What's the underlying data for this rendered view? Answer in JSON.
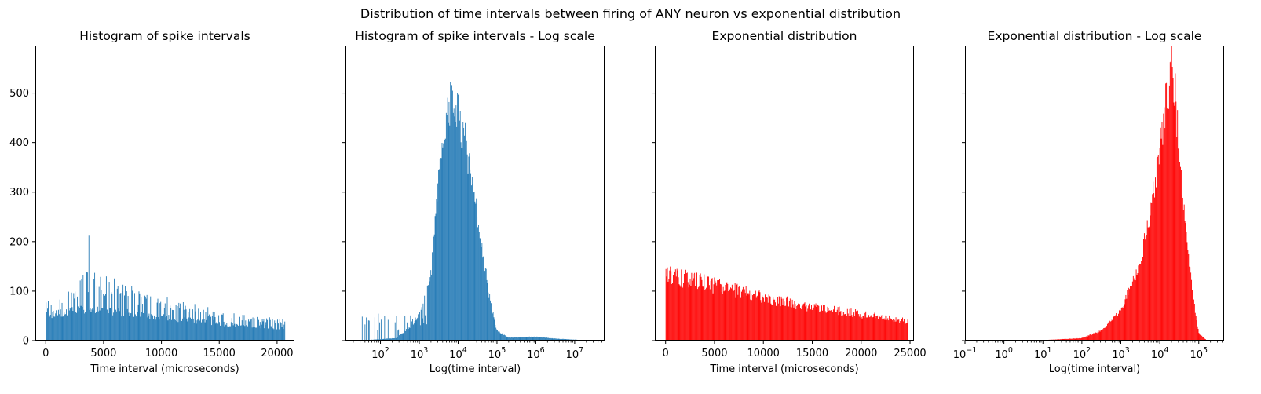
{
  "suptitle": "Distribution of time intervals between firing of ANY neuron vs exponential distribution",
  "colors": {
    "blue": "#1f77b4",
    "red": "#ff0000"
  },
  "shared_y": {
    "ticks": [
      0,
      100,
      200,
      300,
      400,
      500
    ],
    "ylim": [
      0,
      596
    ],
    "grid": false
  },
  "chart_data": [
    {
      "type": "bar",
      "title": "Histogram of spike intervals",
      "xlabel": "Time interval (microseconds)",
      "ylabel": "",
      "x_scale": "linear",
      "xlim": [
        -900,
        21500
      ],
      "xticks": [
        0,
        5000,
        10000,
        15000,
        20000
      ],
      "xtick_labels": [
        "0",
        "5000",
        "10000",
        "15000",
        "20000"
      ],
      "color": "#1f77b4",
      "shape": "spiky",
      "bins": {
        "start": 0,
        "end": 20700,
        "count": 330,
        "bin_width": 62.7
      },
      "envelope": [
        [
          0,
          75
        ],
        [
          1000,
          80
        ],
        [
          2500,
          95
        ],
        [
          3800,
          135
        ],
        [
          5000,
          120
        ],
        [
          7500,
          95
        ],
        [
          10000,
          80
        ],
        [
          15000,
          55
        ],
        [
          20700,
          40
        ]
      ],
      "base_envelope": [
        [
          0,
          50
        ],
        [
          2000,
          58
        ],
        [
          4000,
          65
        ],
        [
          6000,
          58
        ],
        [
          10000,
          48
        ],
        [
          15000,
          35
        ],
        [
          20700,
          25
        ]
      ],
      "spike_peak": 212,
      "ylim": [
        0,
        596
      ]
    },
    {
      "type": "bar",
      "title": "Histogram of spike intervals - Log scale",
      "xlabel": "Log(time interval)",
      "ylabel": "",
      "x_scale": "log",
      "xlim_log10": [
        1.1,
        7.77
      ],
      "xticks": [
        100,
        1000,
        10000,
        100000,
        1000000,
        10000000
      ],
      "xtick_labels": [
        [
          "10",
          "2"
        ],
        [
          "10",
          "3"
        ],
        [
          "10",
          "4"
        ],
        [
          "10",
          "5"
        ],
        [
          "10",
          "6"
        ],
        [
          "10",
          "7"
        ]
      ],
      "color": "#1f77b4",
      "shape": "smooth",
      "bins": {
        "start_log10": 1.45,
        "end_log10": 7.4,
        "count": 330
      },
      "envelope_log10": [
        [
          1.45,
          0
        ],
        [
          2.4,
          5
        ],
        [
          2.8,
          30
        ],
        [
          3.0,
          55
        ],
        [
          3.3,
          130
        ],
        [
          3.5,
          320
        ],
        [
          3.7,
          470
        ],
        [
          3.85,
          480
        ],
        [
          4.0,
          460
        ],
        [
          4.2,
          400
        ],
        [
          4.4,
          300
        ],
        [
          4.6,
          200
        ],
        [
          4.8,
          90
        ],
        [
          5.0,
          20
        ],
        [
          5.3,
          6
        ],
        [
          6.0,
          8
        ],
        [
          6.5,
          4
        ],
        [
          7.0,
          2
        ],
        [
          7.4,
          0
        ]
      ],
      "ylim": [
        0,
        596
      ]
    },
    {
      "type": "bar",
      "title": "Exponential distribution",
      "xlabel": "Time interval (microseconds)",
      "ylabel": "",
      "x_scale": "linear",
      "xlim": [
        -1100,
        25400
      ],
      "xticks": [
        0,
        5000,
        10000,
        15000,
        20000,
        25000
      ],
      "xtick_labels": [
        "0",
        "5000",
        "10000",
        "15000",
        "20000",
        "25000"
      ],
      "color": "#ff0000",
      "shape": "noisy",
      "bins": {
        "start": 0,
        "end": 24800,
        "count": 330
      },
      "envelope": [
        [
          0,
          140
        ],
        [
          2000,
          128
        ],
        [
          5000,
          115
        ],
        [
          10000,
          90
        ],
        [
          15000,
          70
        ],
        [
          20000,
          55
        ],
        [
          24800,
          40
        ]
      ],
      "ylim": [
        0,
        596
      ]
    },
    {
      "type": "bar",
      "title": "Exponential distribution - Log scale",
      "xlabel": "Log(time interval)",
      "ylabel": "",
      "x_scale": "log",
      "xlim_log10": [
        -1,
        5.65
      ],
      "xticks": [
        0.1,
        1,
        10,
        100,
        1000,
        10000,
        100000
      ],
      "xtick_labels": [
        [
          "10",
          "−1"
        ],
        [
          "10",
          "0"
        ],
        [
          "10",
          "1"
        ],
        [
          "10",
          "2"
        ],
        [
          "10",
          "3"
        ],
        [
          "10",
          "4"
        ],
        [
          "10",
          "5"
        ]
      ],
      "color": "#ff0000",
      "shape": "smooth",
      "bins": {
        "start_log10": -0.8,
        "end_log10": 5.45,
        "count": 330
      },
      "envelope_log10": [
        [
          -0.8,
          0
        ],
        [
          1.0,
          1
        ],
        [
          2.0,
          5
        ],
        [
          2.5,
          20
        ],
        [
          3.0,
          60
        ],
        [
          3.5,
          160
        ],
        [
          3.8,
          280
        ],
        [
          4.0,
          390
        ],
        [
          4.2,
          510
        ],
        [
          4.3,
          545
        ],
        [
          4.4,
          500
        ],
        [
          4.5,
          380
        ],
        [
          4.7,
          200
        ],
        [
          4.85,
          90
        ],
        [
          5.0,
          15
        ],
        [
          5.2,
          1
        ],
        [
          5.45,
          0
        ]
      ],
      "ylim": [
        0,
        596
      ]
    }
  ]
}
